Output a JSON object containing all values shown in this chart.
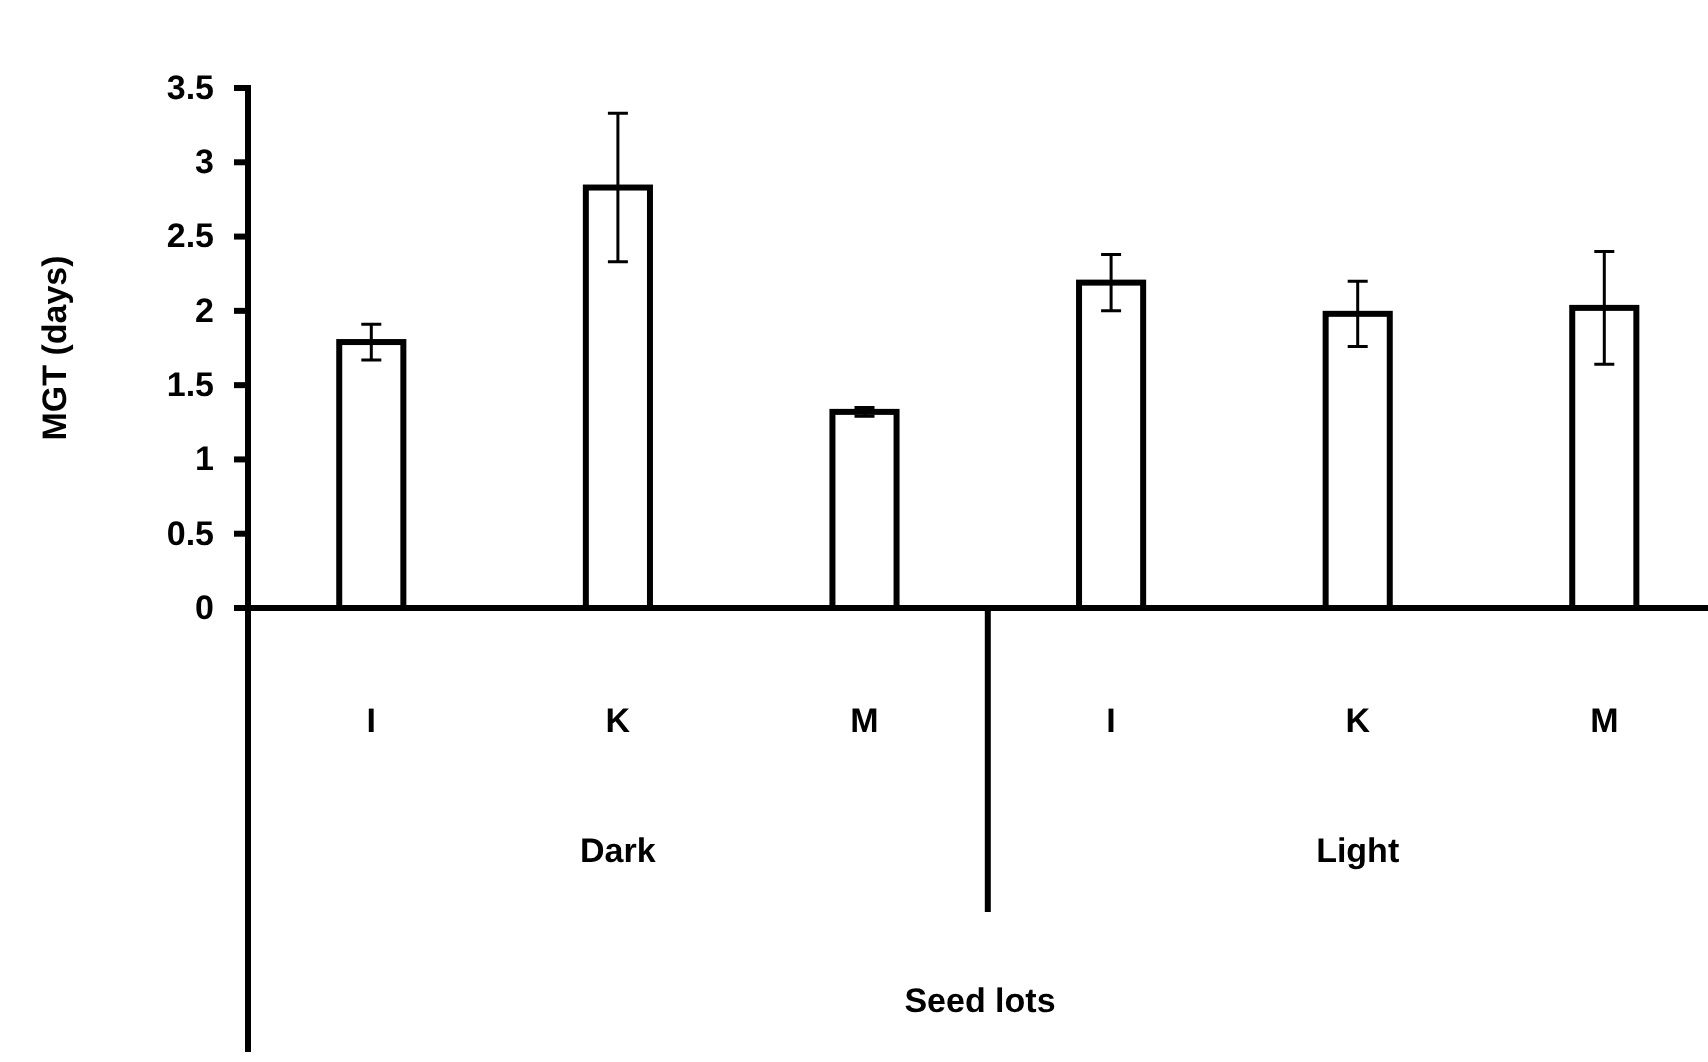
{
  "chart_data": {
    "type": "bar",
    "ylabel": "MGT (days)",
    "categories": [
      "I",
      "K",
      "M",
      "I",
      "K",
      "M"
    ],
    "values": [
      1.79,
      2.83,
      1.32,
      2.19,
      1.98,
      2.02
    ],
    "errors": [
      0.12,
      0.5,
      0.03,
      0.19,
      0.22,
      0.38
    ],
    "color": "#ffffff",
    "ylim": [
      0,
      3.5
    ],
    "yticks": [
      0,
      0.5,
      1,
      1.5,
      2,
      2.5,
      3,
      3.5
    ],
    "annotations": [
      "Dark",
      "Light",
      "Seed lots"
    ],
    "grid": false
  }
}
